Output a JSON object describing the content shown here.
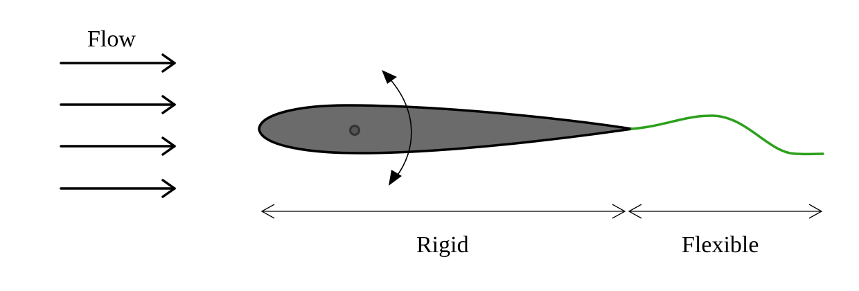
{
  "labels": {
    "flow": "Flow",
    "rigid": "Rigid",
    "flexible": "Flexible"
  },
  "colors": {
    "airfoil_fill": "#6b6b6b",
    "outline": "#000000",
    "flexible_tail": "#2ca01c",
    "pivot_fill": "#555555"
  },
  "flow_arrows": {
    "count": 4
  }
}
